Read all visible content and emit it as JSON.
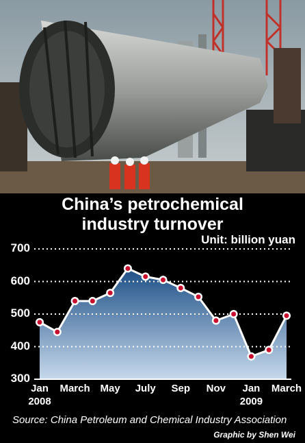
{
  "chart_data": {
    "type": "area-line",
    "title": "China’s petrochemical industry turnover",
    "unit_label": "Unit: billion yuan",
    "categories": [
      "Jan\n2008",
      null,
      "March",
      null,
      "May",
      null,
      "July",
      null,
      "Sep",
      null,
      "Nov",
      null,
      "Jan\n2009",
      null,
      "March"
    ],
    "values": [
      475,
      445,
      540,
      540,
      565,
      640,
      615,
      605,
      580,
      553,
      480,
      500,
      370,
      390,
      495
    ],
    "ylim": [
      300,
      700
    ],
    "yticks": [
      300,
      400,
      500,
      600,
      700
    ],
    "grid": true,
    "color": "#c8102e",
    "source": "Source: China Petroleum and Chemical Industry Association",
    "credit": "Graphic by Shen Wei"
  }
}
